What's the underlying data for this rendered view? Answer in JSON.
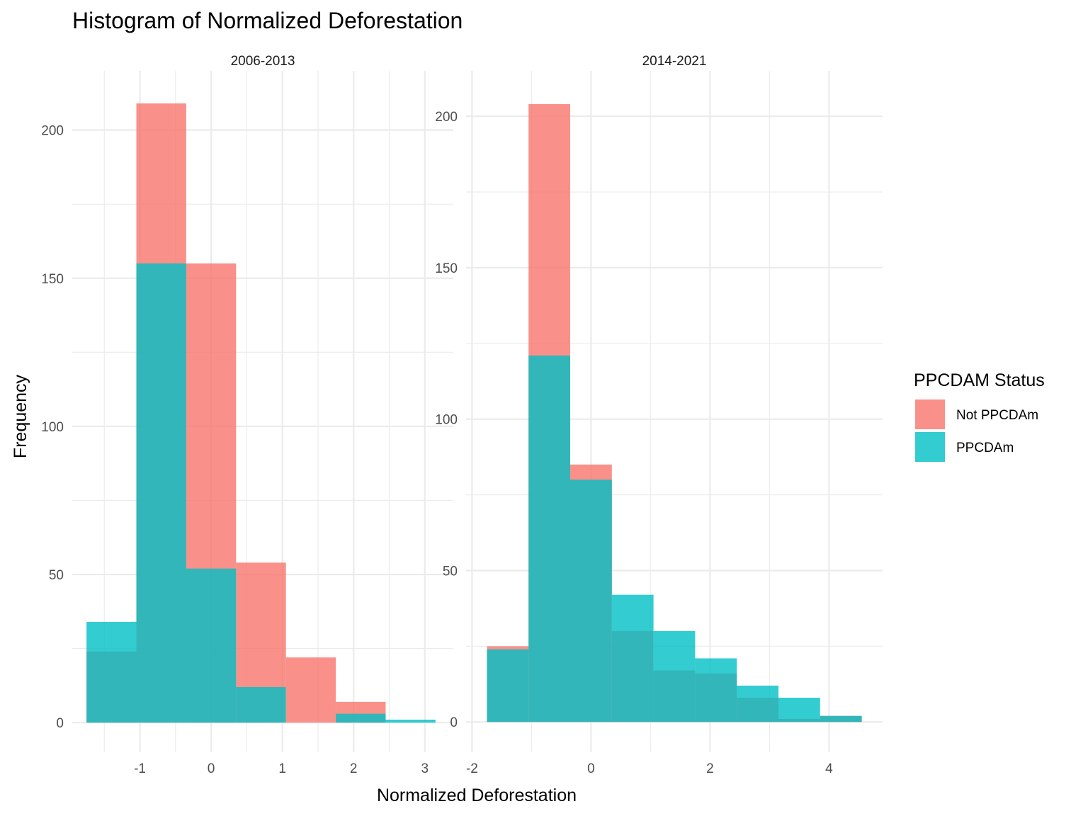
{
  "chart_data": {
    "type": "bar",
    "subtype": "histogram",
    "title": "Histogram of Normalized Deforestation",
    "xlabel": "Normalized Deforestation",
    "ylabel": "Frequency",
    "grid": true,
    "legend": {
      "title": "PPCDAM Status",
      "placement": "right",
      "entries": [
        {
          "name": "Not PPCDAm",
          "color": "#F8766D"
        },
        {
          "name": "PPCDAm",
          "color": "#00BFC4"
        }
      ]
    },
    "bar_opacity": 0.8,
    "panels": [
      {
        "strip": "2006-2013",
        "xlim": [
          -1.95,
          3.4
        ],
        "ylim": [
          -10,
          220
        ],
        "x_ticks": [
          -1,
          0,
          1,
          2,
          3
        ],
        "x_tick_labels": [
          "-1",
          "0",
          "1",
          "2",
          "3"
        ],
        "y_ticks": [
          0,
          50,
          100,
          150,
          200
        ],
        "y_tick_labels": [
          "0",
          "50",
          "100",
          "150",
          "200"
        ],
        "bin_edges": [
          -1.75,
          -1.05,
          -0.35,
          0.35,
          1.05,
          1.75,
          2.45,
          3.15
        ],
        "series": [
          {
            "name": "Not PPCDAm",
            "values": [
              24,
              209,
              155,
              54,
              22,
              7,
              0
            ]
          },
          {
            "name": "PPCDAm",
            "values": [
              34,
              155,
              52,
              12,
              0,
              3,
              1
            ]
          }
        ]
      },
      {
        "strip": "2014-2021",
        "xlim": [
          -2.1,
          4.9
        ],
        "ylim": [
          -10,
          215
        ],
        "x_ticks": [
          -2,
          0,
          2,
          4
        ],
        "x_tick_labels": [
          "-2",
          "0",
          "2",
          "4"
        ],
        "y_ticks": [
          0,
          50,
          100,
          150,
          200
        ],
        "y_tick_labels": [
          "0",
          "50",
          "100",
          "150",
          "200"
        ],
        "bin_edges": [
          -1.75,
          -1.05,
          -0.35,
          0.35,
          1.05,
          1.75,
          2.45,
          3.15,
          3.85,
          4.55
        ],
        "series": [
          {
            "name": "Not PPCDAm",
            "values": [
              25,
              204,
              85,
              30,
              17,
              16,
              8,
              1,
              2
            ]
          },
          {
            "name": "PPCDAm",
            "values": [
              24,
              121,
              80,
              42,
              30,
              21,
              12,
              8,
              2
            ]
          }
        ]
      }
    ]
  }
}
